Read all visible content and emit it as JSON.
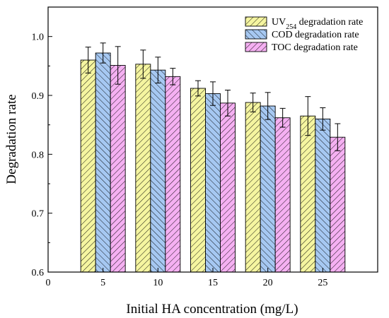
{
  "chart_data": {
    "type": "bar",
    "title": "",
    "xlabel": "Initial HA concentration (mg/L)",
    "ylabel": "Degradation rate",
    "x_ticks": [
      "0",
      "5",
      "10",
      "15",
      "20",
      "25"
    ],
    "x_range": [
      0,
      30
    ],
    "categories": [
      5,
      10,
      15,
      20,
      25
    ],
    "ylim": [
      0.6,
      1.05
    ],
    "y_ticks": [
      "0.6",
      "0.7",
      "0.8",
      "0.9",
      "1.0"
    ],
    "grid": false,
    "legend_position": "top-right",
    "series": [
      {
        "name": "UV254 degradation rate",
        "name_main": "UV",
        "name_sub": "254",
        "name_rest": " degradation rate",
        "color": "#f5f5a0",
        "hatch": "diagonal-right",
        "values": [
          0.96,
          0.953,
          0.912,
          0.888,
          0.865
        ],
        "errors": [
          0.022,
          0.024,
          0.013,
          0.016,
          0.033
        ]
      },
      {
        "name": "COD degradation rate",
        "color": "#a6c8f2",
        "hatch": "diagonal-left",
        "values": [
          0.972,
          0.943,
          0.903,
          0.882,
          0.86
        ],
        "errors": [
          0.017,
          0.022,
          0.02,
          0.023,
          0.019
        ]
      },
      {
        "name": "TOC degradation rate",
        "color": "#f5b0f2",
        "hatch": "diagonal-right",
        "values": [
          0.951,
          0.932,
          0.887,
          0.862,
          0.829
        ],
        "errors": [
          0.032,
          0.014,
          0.022,
          0.016,
          0.023
        ]
      }
    ]
  }
}
